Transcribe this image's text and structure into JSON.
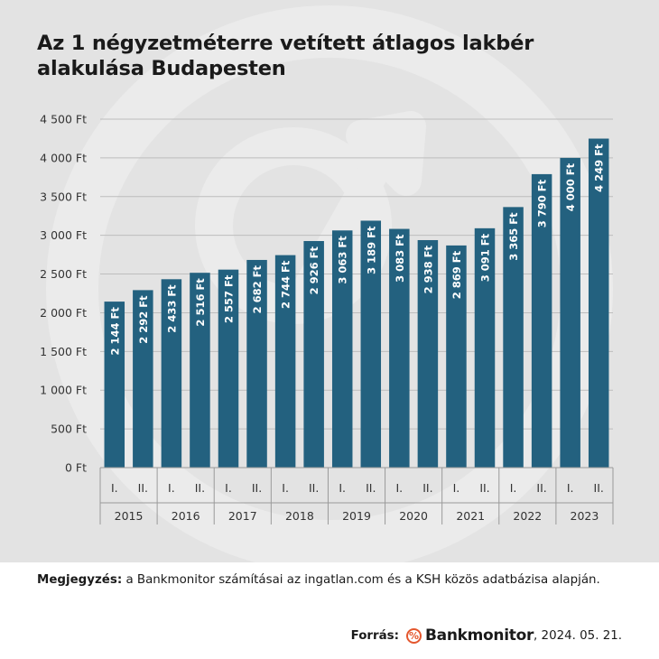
{
  "title": "Az 1 négyzetméterre vetített átlagos lakbér alakulása Budapesten",
  "note": {
    "label": "Megjegyzés:",
    "text": "a Bankmonitor számításai az ingatlan.com és a KSH közös adatbázisa alapján."
  },
  "source": {
    "label": "Forrás:",
    "brand": "Bankmonitor",
    "date": ", 2024. 05. 21."
  },
  "colors": {
    "bar": "#23617f",
    "background": "#e3e3e3",
    "accent": "#e4572e"
  },
  "icons": {
    "logo": "percent-circle-icon",
    "watermark": "arrow-circle-icon"
  },
  "chart_data": {
    "type": "bar",
    "title": "Az 1 négyzetméterre vetített átlagos lakbér alakulása Budapesten",
    "ylim": [
      0,
      4500
    ],
    "yticks": [
      "0 Ft",
      "500 Ft",
      "1 000 Ft",
      "1 500 Ft",
      "2 000 Ft",
      "2 500 Ft",
      "3 000 Ft",
      "3 500 Ft",
      "4 000 Ft",
      "4 500 Ft"
    ],
    "grid": true,
    "legend": "none",
    "years": [
      "2015",
      "2016",
      "2017",
      "2018",
      "2019",
      "2020",
      "2021",
      "2022",
      "2023"
    ],
    "categories": [
      "I.",
      "II.",
      "I.",
      "II.",
      "I.",
      "II.",
      "I.",
      "II.",
      "I.",
      "II.",
      "I.",
      "II.",
      "I.",
      "II.",
      "I.",
      "II.",
      "I.",
      "II."
    ],
    "values": [
      2144,
      2292,
      2433,
      2516,
      2557,
      2682,
      2744,
      2926,
      3063,
      3189,
      3083,
      2938,
      2869,
      3091,
      3365,
      3790,
      4000,
      4249
    ],
    "labels": [
      "2 144 Ft",
      "2 292 Ft",
      "2 433 Ft",
      "2 516 Ft",
      "2 557 Ft",
      "2 682 Ft",
      "2 744 Ft",
      "2 926 Ft",
      "3 063 Ft",
      "3 189 Ft",
      "3 083 Ft",
      "2 938 Ft",
      "2 869 Ft",
      "3 091 Ft",
      "3 365 Ft",
      "3 790 Ft",
      "4 000 Ft",
      "4 249 Ft"
    ]
  }
}
